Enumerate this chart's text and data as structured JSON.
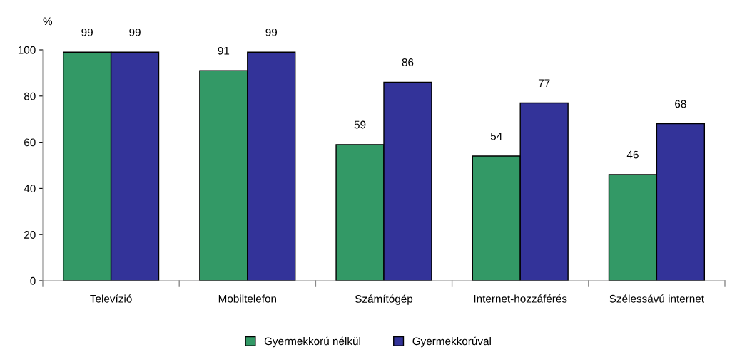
{
  "chart_data": {
    "type": "bar",
    "ylabel": "%",
    "categories": [
      "Televízió",
      "Mobiltelefon",
      "Számítógép",
      "Internet-hozzáférés",
      "Szélessávú internet"
    ],
    "series": [
      {
        "name": "Gyermekkorú nélkül",
        "color": "#339966",
        "values": [
          99,
          91,
          59,
          54,
          46
        ]
      },
      {
        "name": "Gyermekkorúval",
        "color": "#333399",
        "values": [
          99,
          99,
          86,
          77,
          68
        ]
      }
    ],
    "ylim": [
      0,
      100
    ],
    "yticks": [
      0,
      20,
      40,
      60,
      80,
      100
    ],
    "data_labels": true,
    "grid": false,
    "legend": "bottom"
  }
}
